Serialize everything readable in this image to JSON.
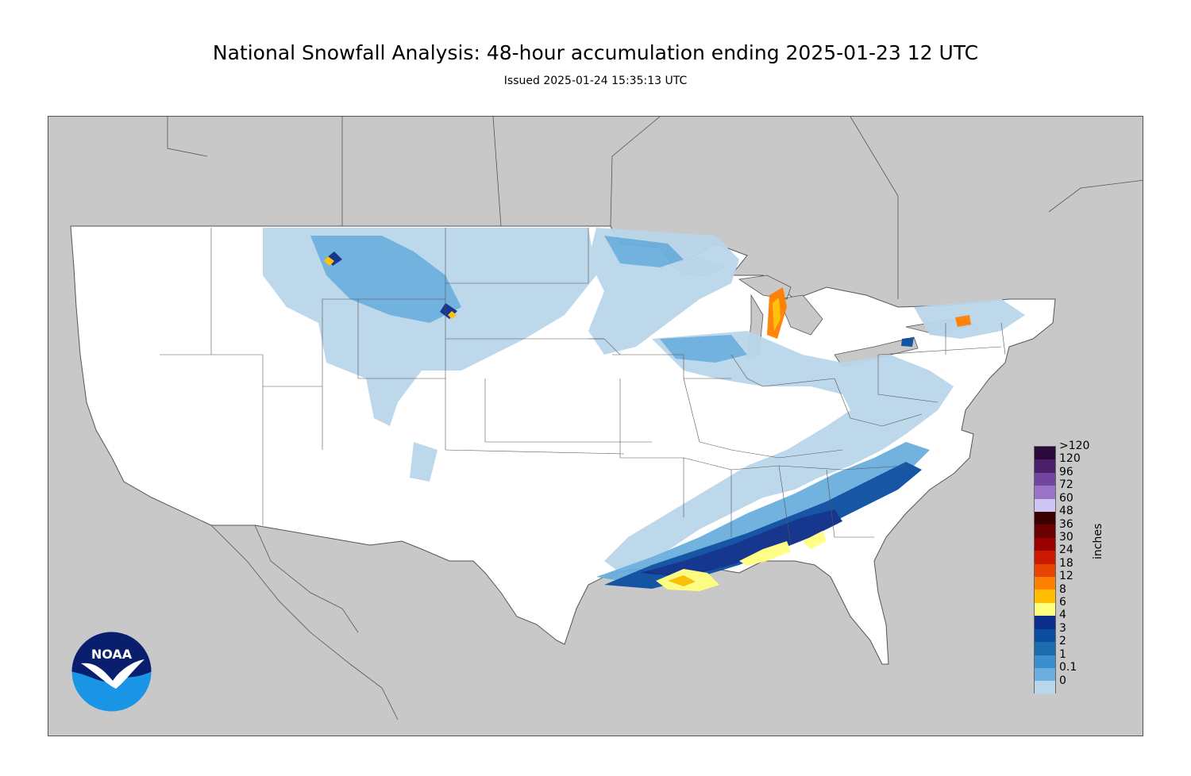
{
  "title": "National Snowfall Analysis: 48-hour accumulation ending 2025-01-23 12 UTC",
  "subtitle": "Issued 2025-01-24 15:35:13 UTC",
  "map": {
    "colors": {
      "land": "#ffffff",
      "outside": "#c8c8c8",
      "border": "#555555"
    }
  },
  "legend": {
    "units": "inches",
    "levels": [
      ">120",
      "120",
      "96",
      "72",
      "60",
      "48",
      "36",
      "30",
      "24",
      "18",
      "12",
      "8",
      "6",
      "4",
      "3",
      "2",
      "1",
      "0.1",
      "0"
    ],
    "colors": [
      "#2a0a3a",
      "#4c1f6b",
      "#7246a0",
      "#9a74c8",
      "#cdc6f5",
      "#3b0000",
      "#6b0000",
      "#9b0000",
      "#cc1a00",
      "#e64400",
      "#ff8000",
      "#ffbe00",
      "#ffff80",
      "#0b2d8a",
      "#0b4ea0",
      "#1d6cb0",
      "#3b8fcc",
      "#6aaede",
      "#bad6ea"
    ],
    "bottom_colors": [
      "#dbe9f5",
      "#ffffff"
    ]
  },
  "logo": {
    "text": "NOAA",
    "icon": "noaa-logo-icon",
    "colors": {
      "sky": "#0a1e6e",
      "sea": "#1a95e6",
      "gull": "#ffffff"
    }
  }
}
